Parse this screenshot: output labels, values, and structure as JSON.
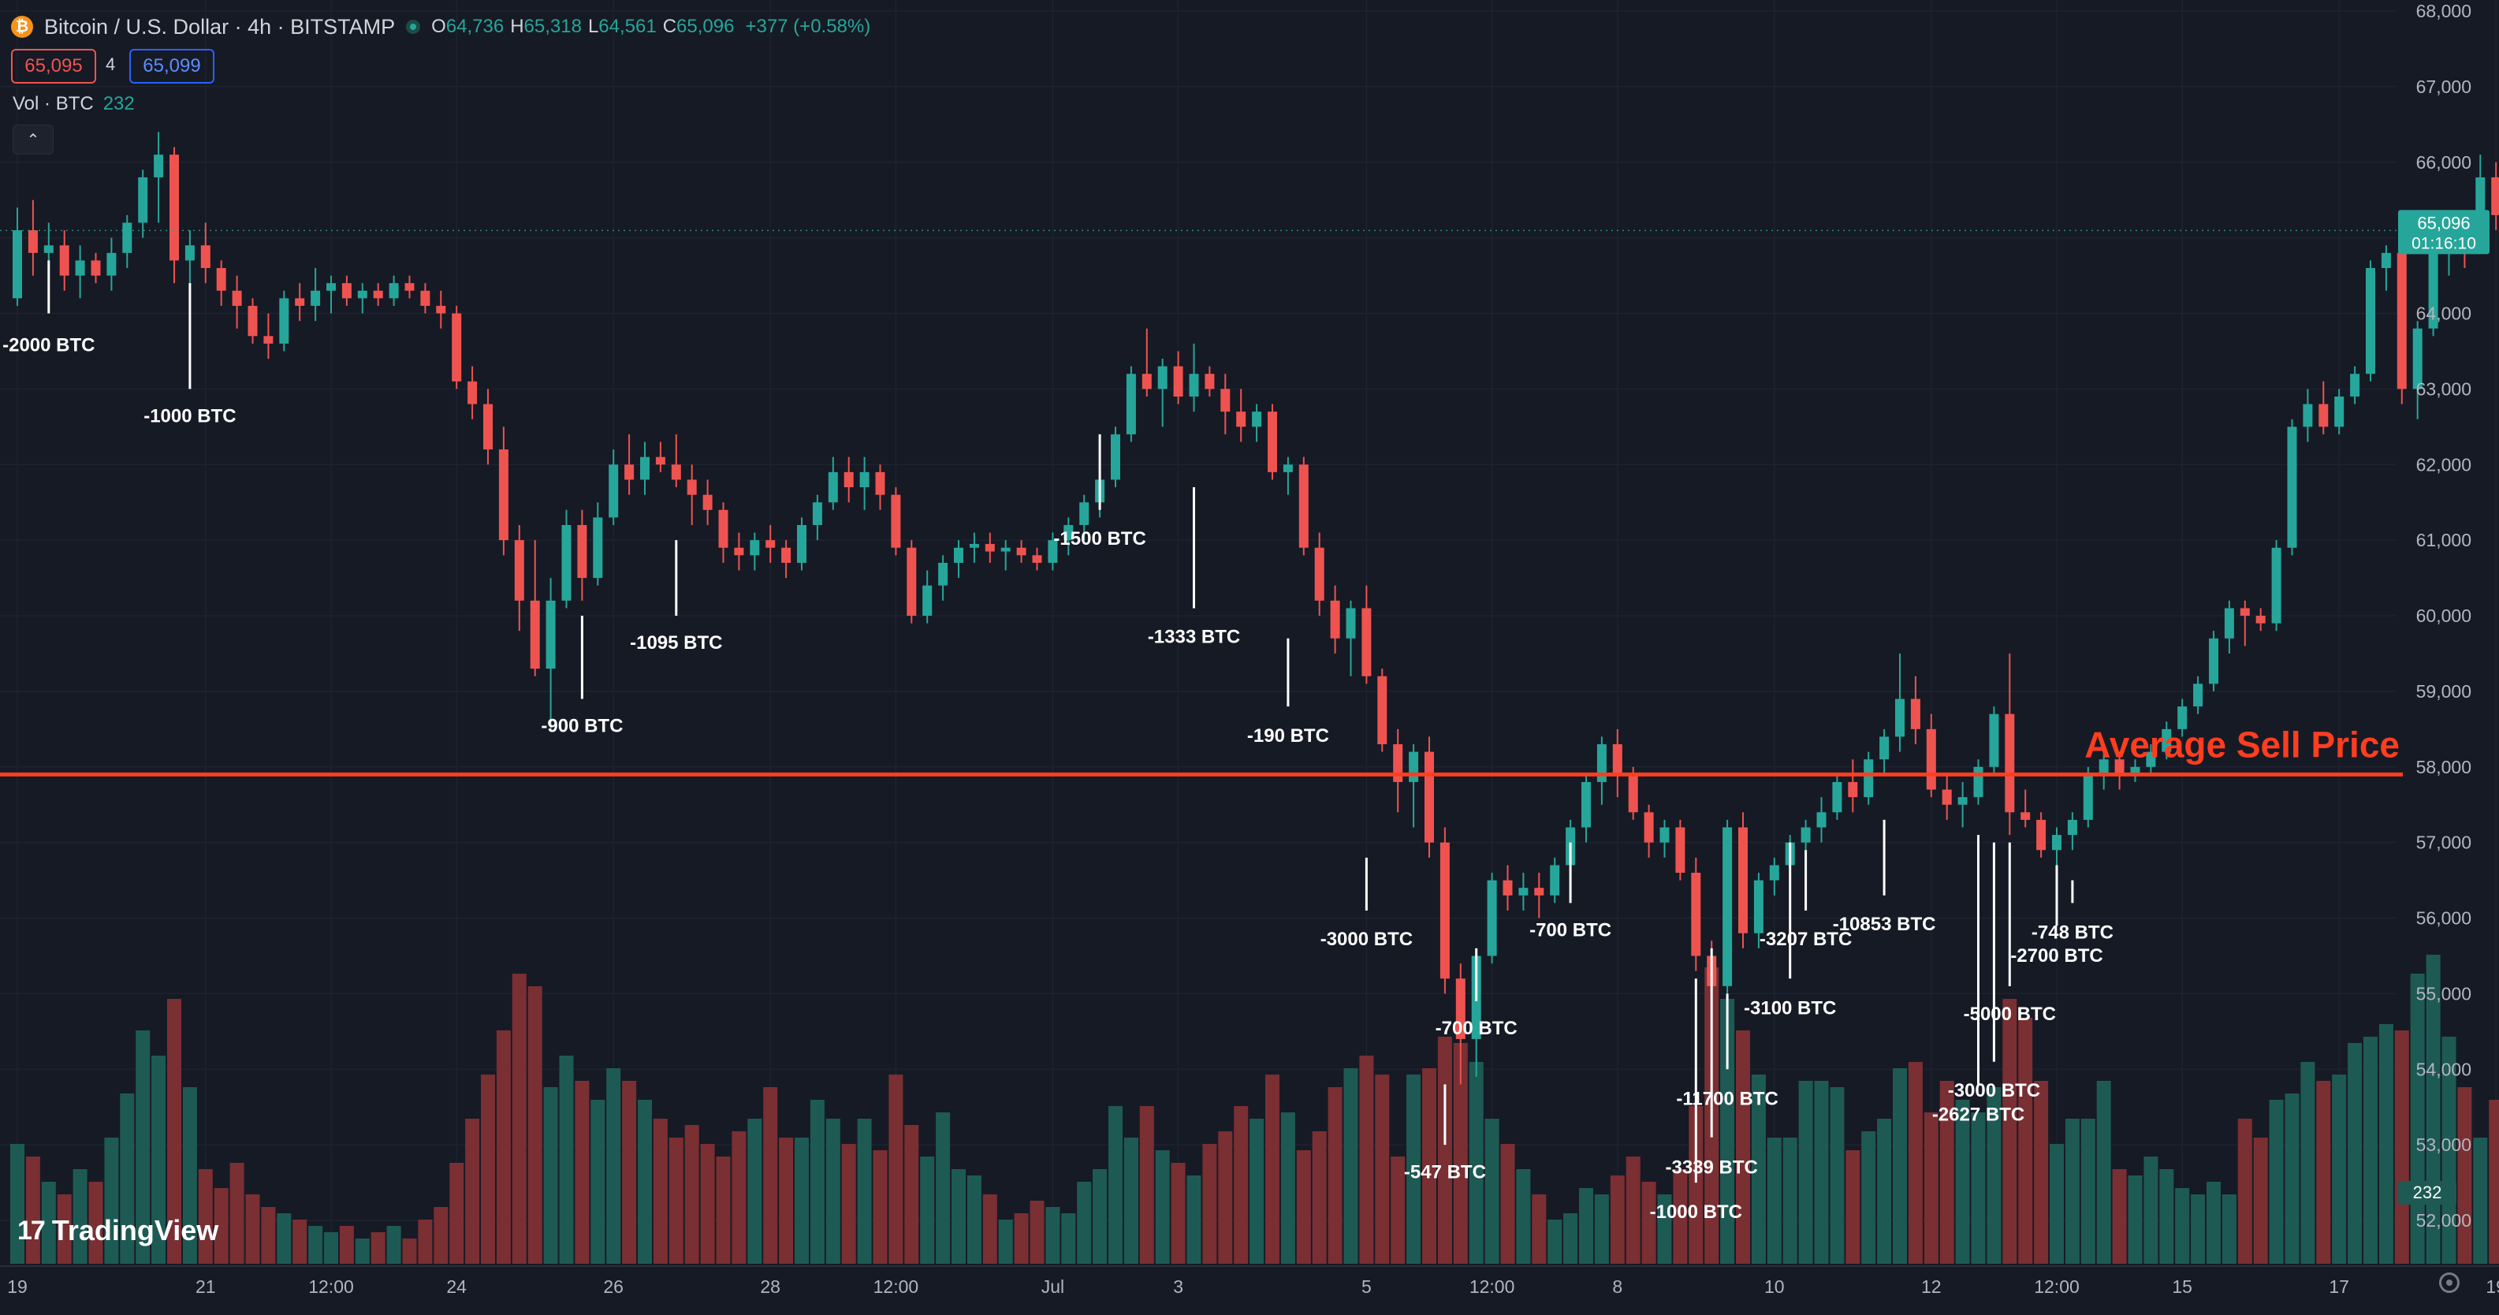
{
  "header": {
    "symbol": "Bitcoin / U.S. Dollar · 4h · BITSTAMP",
    "coin_glyph": "₿",
    "open_key": "O",
    "open": "64,736",
    "high_key": "H",
    "high": "65,318",
    "low_key": "L",
    "low": "64,561",
    "close_key": "C",
    "close": "65,096",
    "change": "+377 (+0.58%)",
    "sell_price": "65,095",
    "spread": "4",
    "buy_price": "65,099",
    "volume_label": "Vol · BTC",
    "volume_value": "232",
    "collapse_glyph": "⌃"
  },
  "branding": {
    "logo_glyph": "17",
    "name": "TradingView"
  },
  "colors": {
    "background": "#161a25",
    "grid": "#1f2330",
    "up": "#26a69a",
    "down": "#ef5350",
    "vol_up": "#1e5a54",
    "vol_down": "#7a2f33",
    "average_line": "#ff3d1f",
    "text": "#d1d4dc",
    "axis_text": "#b2b5be",
    "annotation": "#ffffff"
  },
  "chart_data": {
    "type": "candlestick",
    "instrument": "Bitcoin / U.S. Dollar",
    "interval": "4h",
    "exchange": "BITSTAMP",
    "ylim": [
      51500,
      68000
    ],
    "y_ticks": [
      "68,000",
      "67,000",
      "66,000",
      "65,000",
      "64,000",
      "63,000",
      "62,000",
      "61,000",
      "60,000",
      "59,000",
      "58,000",
      "57,000",
      "56,000",
      "55,000",
      "54,000",
      "53,000",
      "52,000"
    ],
    "x_tick_labels": [
      "19",
      "21",
      "12:00",
      "24",
      "26",
      "28",
      "12:00",
      "Jul",
      "3",
      "5",
      "12:00",
      "8",
      "10",
      "12",
      "12:00",
      "15",
      "17",
      "19"
    ],
    "x_tick_bars": [
      0,
      12,
      20,
      28,
      38,
      48,
      56,
      66,
      74,
      86,
      94,
      102,
      112,
      122,
      130,
      138,
      148,
      158
    ],
    "grid": true,
    "candles": [
      [
        64200,
        65400,
        64100,
        65100
      ],
      [
        65100,
        65500,
        64500,
        64800
      ],
      [
        64800,
        65200,
        64500,
        64900
      ],
      [
        64900,
        65100,
        64300,
        64500
      ],
      [
        64500,
        64900,
        64200,
        64700
      ],
      [
        64700,
        64800,
        64400,
        64500
      ],
      [
        64500,
        65000,
        64300,
        64800
      ],
      [
        64800,
        65300,
        64600,
        65200
      ],
      [
        65200,
        65900,
        65000,
        65800
      ],
      [
        65800,
        66400,
        65200,
        66100
      ],
      [
        66100,
        66200,
        64400,
        64700
      ],
      [
        64700,
        65100,
        64400,
        64900
      ],
      [
        64900,
        65200,
        64400,
        64600
      ],
      [
        64600,
        64700,
        64100,
        64300
      ],
      [
        64300,
        64500,
        63800,
        64100
      ],
      [
        64100,
        64200,
        63600,
        63700
      ],
      [
        63700,
        64000,
        63400,
        63600
      ],
      [
        63600,
        64300,
        63500,
        64200
      ],
      [
        64200,
        64400,
        63900,
        64100
      ],
      [
        64100,
        64600,
        63900,
        64300
      ],
      [
        64300,
        64500,
        64000,
        64400
      ],
      [
        64400,
        64500,
        64100,
        64200
      ],
      [
        64200,
        64400,
        64000,
        64300
      ],
      [
        64300,
        64400,
        64100,
        64200
      ],
      [
        64200,
        64500,
        64100,
        64400
      ],
      [
        64400,
        64500,
        64200,
        64300
      ],
      [
        64300,
        64400,
        64000,
        64100
      ],
      [
        64100,
        64300,
        63800,
        64000
      ],
      [
        64000,
        64100,
        63000,
        63100
      ],
      [
        63100,
        63300,
        62600,
        62800
      ],
      [
        62800,
        63000,
        62000,
        62200
      ],
      [
        62200,
        62500,
        60800,
        61000
      ],
      [
        61000,
        61200,
        59800,
        60200
      ],
      [
        60200,
        61000,
        59200,
        59300
      ],
      [
        59300,
        60500,
        58500,
        60200
      ],
      [
        60200,
        61400,
        60100,
        61200
      ],
      [
        61200,
        61400,
        60200,
        60500
      ],
      [
        60500,
        61500,
        60400,
        61300
      ],
      [
        61300,
        62200,
        61200,
        62000
      ],
      [
        62000,
        62400,
        61600,
        61800
      ],
      [
        61800,
        62300,
        61600,
        62100
      ],
      [
        62100,
        62300,
        61900,
        62000
      ],
      [
        62000,
        62400,
        61700,
        61800
      ],
      [
        61800,
        62000,
        61200,
        61600
      ],
      [
        61600,
        61800,
        61200,
        61400
      ],
      [
        61400,
        61500,
        60700,
        60900
      ],
      [
        60900,
        61100,
        60600,
        60800
      ],
      [
        60800,
        61100,
        60600,
        61000
      ],
      [
        61000,
        61200,
        60700,
        60900
      ],
      [
        60900,
        61000,
        60500,
        60700
      ],
      [
        60700,
        61300,
        60600,
        61200
      ],
      [
        61200,
        61600,
        61000,
        61500
      ],
      [
        61500,
        62100,
        61400,
        61900
      ],
      [
        61900,
        62100,
        61500,
        61700
      ],
      [
        61700,
        62100,
        61400,
        61900
      ],
      [
        61900,
        62000,
        61400,
        61600
      ],
      [
        61600,
        61700,
        60800,
        60900
      ],
      [
        60900,
        61000,
        59900,
        60000
      ],
      [
        60000,
        60600,
        59900,
        60400
      ],
      [
        60400,
        60800,
        60200,
        60700
      ],
      [
        60700,
        61000,
        60500,
        60900
      ],
      [
        60900,
        61100,
        60700,
        60950
      ],
      [
        60950,
        61100,
        60700,
        60850
      ],
      [
        60850,
        61000,
        60600,
        60900
      ],
      [
        60900,
        61000,
        60700,
        60800
      ],
      [
        60800,
        60900,
        60600,
        60700
      ],
      [
        60700,
        61100,
        60600,
        61000
      ],
      [
        61000,
        61300,
        60800,
        61200
      ],
      [
        61200,
        61600,
        61000,
        61500
      ],
      [
        61500,
        61900,
        61300,
        61800
      ],
      [
        61800,
        62500,
        61700,
        62400
      ],
      [
        62400,
        63300,
        62300,
        63200
      ],
      [
        63200,
        63800,
        62900,
        63000
      ],
      [
        63000,
        63400,
        62500,
        63300
      ],
      [
        63300,
        63500,
        62800,
        62900
      ],
      [
        62900,
        63600,
        62700,
        63200
      ],
      [
        63200,
        63300,
        62900,
        63000
      ],
      [
        63000,
        63200,
        62400,
        62700
      ],
      [
        62700,
        63000,
        62300,
        62500
      ],
      [
        62500,
        62800,
        62300,
        62700
      ],
      [
        62700,
        62800,
        61800,
        61900
      ],
      [
        61900,
        62100,
        61600,
        62000
      ],
      [
        62000,
        62100,
        60800,
        60900
      ],
      [
        60900,
        61100,
        60000,
        60200
      ],
      [
        60200,
        60400,
        59500,
        59700
      ],
      [
        59700,
        60200,
        59200,
        60100
      ],
      [
        60100,
        60400,
        59100,
        59200
      ],
      [
        59200,
        59300,
        58200,
        58300
      ],
      [
        58300,
        58500,
        57400,
        57800
      ],
      [
        57800,
        58300,
        57200,
        58200
      ],
      [
        58200,
        58400,
        56800,
        57000
      ],
      [
        57000,
        57200,
        55000,
        55200
      ],
      [
        55200,
        55400,
        53800,
        54400
      ],
      [
        54400,
        55600,
        53900,
        55500
      ],
      [
        55500,
        56600,
        55400,
        56500
      ],
      [
        56500,
        56700,
        56100,
        56300
      ],
      [
        56300,
        56600,
        56100,
        56400
      ],
      [
        56400,
        56600,
        56000,
        56300
      ],
      [
        56300,
        56800,
        56200,
        56700
      ],
      [
        56700,
        57300,
        56500,
        57200
      ],
      [
        57200,
        57900,
        57000,
        57800
      ],
      [
        57800,
        58400,
        57500,
        58300
      ],
      [
        58300,
        58500,
        57600,
        57900
      ],
      [
        57900,
        58000,
        57300,
        57400
      ],
      [
        57400,
        57500,
        56800,
        57000
      ],
      [
        57000,
        57300,
        56800,
        57200
      ],
      [
        57200,
        57300,
        56500,
        56600
      ],
      [
        56600,
        56800,
        55300,
        55500
      ],
      [
        55500,
        55700,
        55000,
        55100
      ],
      [
        55100,
        57300,
        55000,
        57200
      ],
      [
        57200,
        57400,
        55600,
        55800
      ],
      [
        55800,
        56600,
        55600,
        56500
      ],
      [
        56500,
        56800,
        56300,
        56700
      ],
      [
        56700,
        57100,
        56500,
        57000
      ],
      [
        57000,
        57300,
        56800,
        57200
      ],
      [
        57200,
        57600,
        57000,
        57400
      ],
      [
        57400,
        57900,
        57300,
        57800
      ],
      [
        57800,
        58100,
        57400,
        57600
      ],
      [
        57600,
        58200,
        57500,
        58100
      ],
      [
        58100,
        58500,
        57900,
        58400
      ],
      [
        58400,
        59500,
        58200,
        58900
      ],
      [
        58900,
        59200,
        58300,
        58500
      ],
      [
        58500,
        58700,
        57600,
        57700
      ],
      [
        57700,
        57900,
        57300,
        57500
      ],
      [
        57500,
        57800,
        57200,
        57600
      ],
      [
        57600,
        58100,
        57500,
        58000
      ],
      [
        58000,
        58800,
        57900,
        58700
      ],
      [
        58700,
        59500,
        57100,
        57400
      ],
      [
        57400,
        57700,
        57200,
        57300
      ],
      [
        57300,
        57400,
        56800,
        56900
      ],
      [
        56900,
        57200,
        56600,
        57100
      ],
      [
        57100,
        57400,
        56900,
        57300
      ],
      [
        57300,
        58000,
        57200,
        57900
      ],
      [
        57900,
        58300,
        57700,
        58100
      ],
      [
        58100,
        58200,
        57700,
        57900
      ],
      [
        57900,
        58100,
        57800,
        58000
      ],
      [
        58000,
        58300,
        57900,
        58200
      ],
      [
        58200,
        58600,
        58100,
        58500
      ],
      [
        58500,
        58900,
        58400,
        58800
      ],
      [
        58800,
        59200,
        58700,
        59100
      ],
      [
        59100,
        59800,
        59000,
        59700
      ],
      [
        59700,
        60200,
        59500,
        60100
      ],
      [
        60100,
        60200,
        59600,
        60000
      ],
      [
        60000,
        60100,
        59800,
        59900
      ],
      [
        59900,
        61000,
        59800,
        60900
      ],
      [
        60900,
        62600,
        60800,
        62500
      ],
      [
        62500,
        63000,
        62300,
        62800
      ],
      [
        62800,
        63100,
        62400,
        62500
      ],
      [
        62500,
        63000,
        62400,
        62900
      ],
      [
        62900,
        63300,
        62800,
        63200
      ],
      [
        63200,
        64700,
        63100,
        64600
      ],
      [
        64600,
        64900,
        64300,
        64800
      ],
      [
        64800,
        64900,
        62800,
        63000
      ],
      [
        63000,
        63900,
        62600,
        63800
      ],
      [
        63800,
        65000,
        63700,
        64900
      ],
      [
        64900,
        65200,
        64500,
        65100
      ],
      [
        65100,
        65300,
        64600,
        65000
      ],
      [
        65000,
        66100,
        64900,
        65800
      ],
      [
        65800,
        66000,
        65100,
        65300
      ],
      [
        65300,
        65600,
        64600,
        64800
      ],
      [
        64800,
        65300,
        64600,
        65096
      ]
    ],
    "volumes": [
      38,
      34,
      26,
      22,
      30,
      26,
      40,
      54,
      74,
      66,
      84,
      56,
      30,
      24,
      32,
      22,
      18,
      16,
      14,
      12,
      10,
      12,
      8,
      10,
      12,
      8,
      14,
      18,
      32,
      46,
      60,
      74,
      92,
      88,
      56,
      66,
      58,
      52,
      62,
      58,
      52,
      46,
      40,
      44,
      38,
      34,
      42,
      46,
      56,
      40,
      40,
      52,
      46,
      38,
      46,
      36,
      60,
      44,
      34,
      48,
      30,
      28,
      22,
      14,
      16,
      20,
      18,
      16,
      26,
      30,
      50,
      40,
      50,
      36,
      32,
      28,
      38,
      42,
      50,
      46,
      60,
      48,
      36,
      42,
      56,
      62,
      66,
      60,
      34,
      60,
      62,
      72,
      70,
      64,
      46,
      38,
      30,
      22,
      14,
      16,
      24,
      22,
      28,
      34,
      26,
      22,
      30,
      50,
      94,
      84,
      74,
      60,
      40,
      40,
      58,
      58,
      56,
      36,
      42,
      46,
      62,
      64,
      48,
      58,
      52,
      48,
      56,
      84,
      78,
      58,
      38,
      46,
      46,
      58,
      30,
      28,
      34,
      30,
      24,
      22,
      26,
      22,
      46,
      40,
      52,
      54,
      64,
      58,
      60,
      70,
      72,
      76,
      74,
      92,
      98,
      72,
      56,
      40,
      52,
      54,
      54,
      44,
      40
    ],
    "average_sell_price": 57900,
    "average_sell_label": "Average Sell Price",
    "last_price_label": "65,096",
    "countdown_label": "01:16:10",
    "last_volume_label": "232",
    "annotations": [
      {
        "text": "-2000 BTC",
        "bar": 2,
        "from": 64700,
        "to": 64000,
        "label_y": 63500
      },
      {
        "text": "-1000 BTC",
        "bar": 11,
        "from": 64400,
        "to": 63000,
        "label_y": 62560
      },
      {
        "text": "-900 BTC",
        "bar": 36,
        "from": 60000,
        "to": 58900,
        "label_y": 58460
      },
      {
        "text": "-1095 BTC",
        "bar": 42,
        "from": 61000,
        "to": 60000,
        "label_y": 59560
      },
      {
        "text": "-1500 BTC",
        "bar": 69,
        "from": 62400,
        "to": 61400,
        "label_y": 60940
      },
      {
        "text": "-1333 BTC",
        "bar": 75,
        "from": 61700,
        "to": 60100,
        "label_y": 59640
      },
      {
        "text": "-190 BTC",
        "bar": 81,
        "from": 59700,
        "to": 58800,
        "label_y": 58330
      },
      {
        "text": "-3000 BTC",
        "bar": 86,
        "from": 56800,
        "to": 56100,
        "label_y": 55640
      },
      {
        "text": "-547 BTC",
        "bar": 91,
        "from": 53800,
        "to": 53000,
        "label_y": 52560
      },
      {
        "text": "-700 BTC",
        "bar": 93,
        "from": 55600,
        "to": 54900,
        "label_y": 54460
      },
      {
        "text": "-700 BTC",
        "bar": 99,
        "from": 57000,
        "to": 56200,
        "label_y": 55760
      },
      {
        "text": "-1000 BTC",
        "bar": 107,
        "from": 55200,
        "to": 52500,
        "label_y": 52030
      },
      {
        "text": "-3339 BTC",
        "bar": 108,
        "from": 55600,
        "to": 53100,
        "label_y": 52620
      },
      {
        "text": "-11700 BTC",
        "bar": 109,
        "from": 55000,
        "to": 54000,
        "label_y": 53530
      },
      {
        "text": "-3100 BTC",
        "bar": 113,
        "from": 57000,
        "to": 55200,
        "label_y": 54730
      },
      {
        "text": "-3207 BTC",
        "bar": 114,
        "from": 56900,
        "to": 56100,
        "label_y": 55640
      },
      {
        "text": "-10853 BTC",
        "bar": 119,
        "from": 57300,
        "to": 56300,
        "label_y": 55840
      },
      {
        "text": "-2627 BTC",
        "bar": 125,
        "from": 57100,
        "to": 53800,
        "label_y": 53320
      },
      {
        "text": "-3000 BTC",
        "bar": 126,
        "from": 57000,
        "to": 54100,
        "label_y": 53640
      },
      {
        "text": "-5000 BTC",
        "bar": 127,
        "from": 57000,
        "to": 55100,
        "label_y": 54650
      },
      {
        "text": "-2700 BTC",
        "bar": 130,
        "from": 56700,
        "to": 55900,
        "label_y": 55420
      },
      {
        "text": "-748 BTC",
        "bar": 131,
        "from": 56500,
        "to": 56200,
        "label_y": 55730
      }
    ]
  }
}
